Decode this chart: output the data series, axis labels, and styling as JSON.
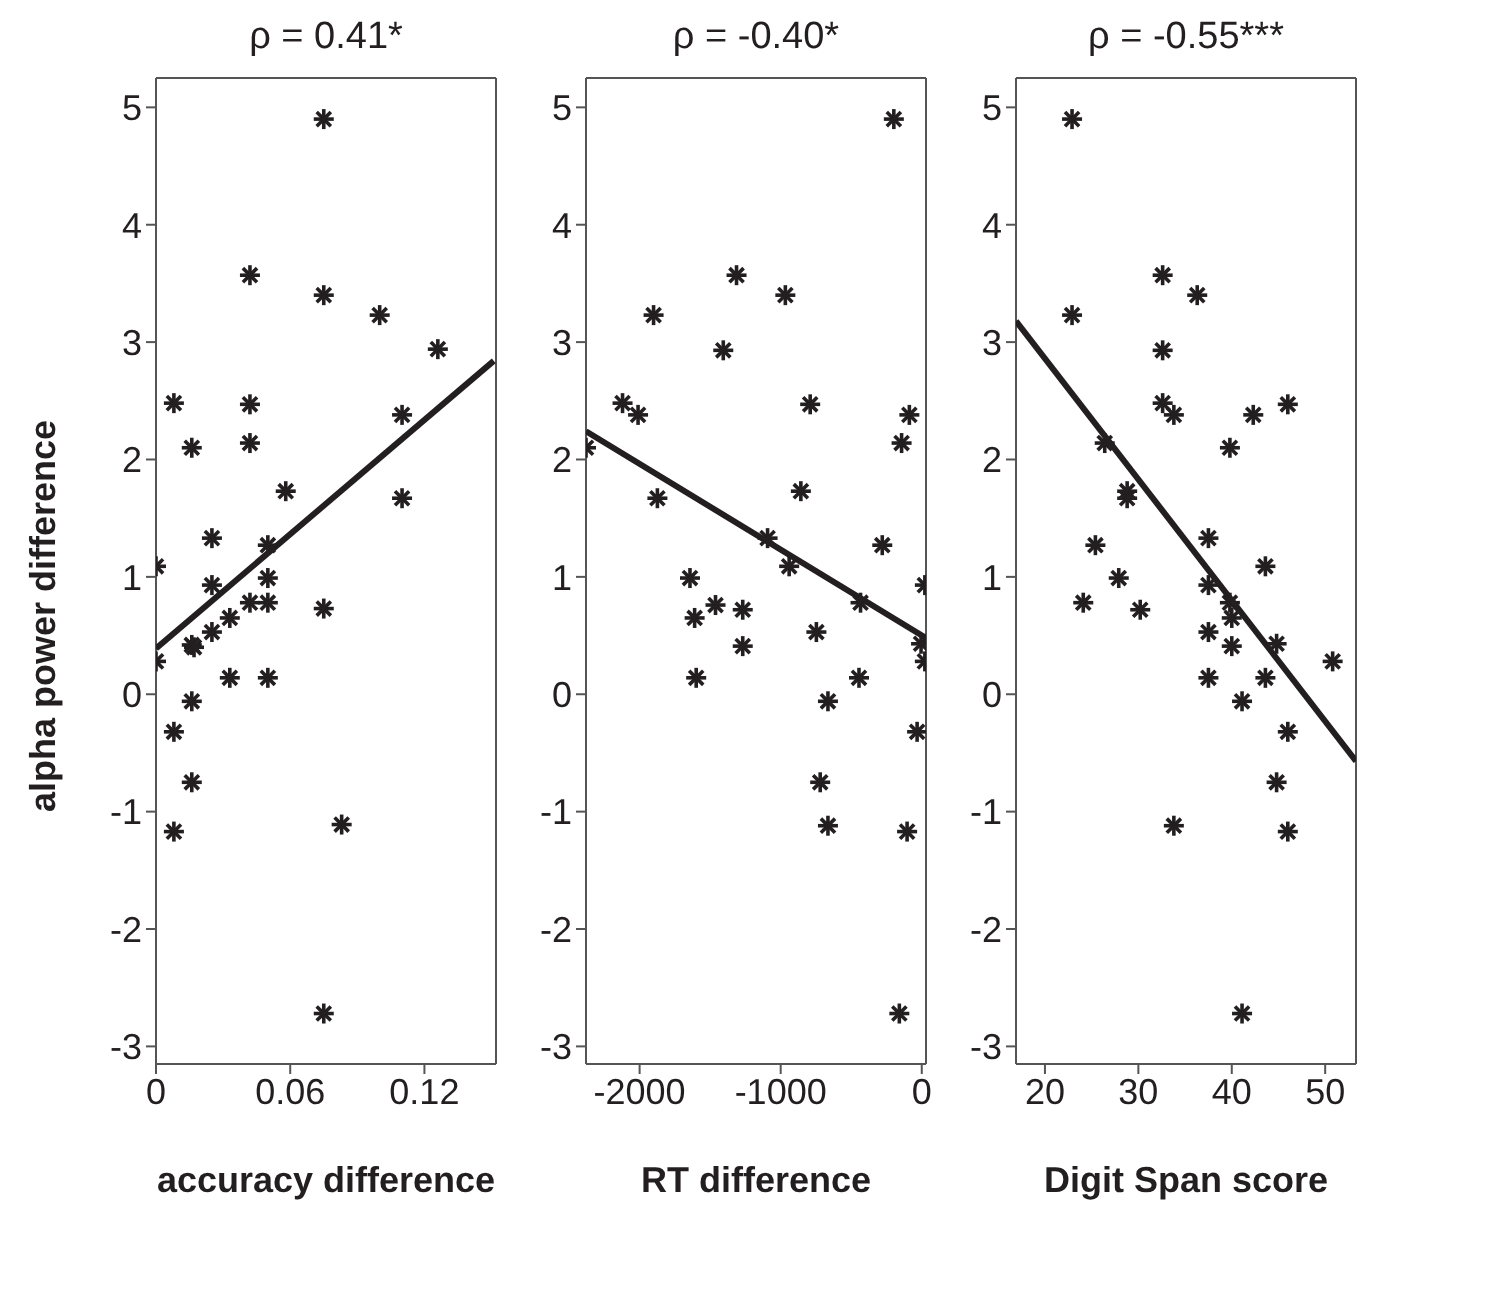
{
  "chart_data": [
    {
      "type": "scatter",
      "title": "ρ = 0.41*",
      "xlabel": "accuracy difference",
      "ylabel": "alpha power difference",
      "xlim": [
        0,
        0.152
      ],
      "xticks": [
        0,
        0.06,
        0.12
      ],
      "ylim": [
        -3.15,
        5.25
      ],
      "yticks": [
        -3,
        -2,
        -1,
        0,
        1,
        2,
        3,
        4,
        5
      ],
      "marker": "cross",
      "series": [
        {
          "color": "#231f20",
          "x": [
            0.075,
            0.042,
            0.075,
            0.1,
            0.126,
            0.008,
            0.042,
            0.11,
            0.016,
            0.042,
            0.058,
            0.11,
            0.025,
            0.0,
            0.05,
            0.025,
            0.05,
            0.042,
            0.05,
            0.075,
            0.033,
            0.025,
            0.016,
            0.017,
            0.0,
            0.033,
            0.05,
            0.016,
            0.008,
            0.016,
            0.008,
            0.083,
            0.075
          ],
          "values": [
            4.9,
            3.57,
            3.4,
            3.23,
            2.94,
            2.48,
            2.47,
            2.38,
            2.1,
            2.14,
            1.73,
            1.67,
            1.33,
            1.09,
            1.27,
            0.93,
            0.99,
            0.78,
            0.78,
            0.73,
            0.65,
            0.53,
            0.42,
            0.4,
            0.28,
            0.14,
            0.14,
            -0.06,
            -0.32,
            -0.75,
            -1.17,
            -1.11,
            -2.72
          ]
        },
        {
          "type": "line",
          "marker": "none",
          "color": "#231f20",
          "x": [
            0,
            0.151
          ],
          "values": [
            0.39,
            2.84
          ]
        }
      ]
    },
    {
      "type": "scatter",
      "title": "ρ = -0.40*",
      "xlabel": "RT difference",
      "xlim": [
        -2380,
        30
      ],
      "xticks": [
        -2000,
        -1000,
        0
      ],
      "ylim": [
        -3.15,
        5.25
      ],
      "yticks": [
        -3,
        -2,
        -1,
        0,
        1,
        2,
        3,
        4,
        5
      ],
      "marker": "cross",
      "series": [
        {
          "color": "#231f20",
          "x": [
            -198,
            -1313,
            -967,
            -1901,
            -1407,
            -2121,
            -2011,
            -791,
            -88,
            -2380,
            -143,
            -857,
            -1874,
            -1093,
            -940,
            -280,
            -1643,
            22,
            -1462,
            -1269,
            -434,
            -1610,
            -747,
            -1269,
            -5,
            22,
            -1599,
            -445,
            -665,
            -33,
            -720,
            -665,
            -104,
            -159
          ],
          "values": [
            4.9,
            3.57,
            3.4,
            3.23,
            2.93,
            2.48,
            2.38,
            2.47,
            2.38,
            2.1,
            2.14,
            1.73,
            1.67,
            1.33,
            1.09,
            1.27,
            0.99,
            0.93,
            0.76,
            0.72,
            0.78,
            0.65,
            0.53,
            0.41,
            0.43,
            0.28,
            0.14,
            0.14,
            -0.06,
            -0.32,
            -0.75,
            -1.12,
            -1.17,
            -2.72
          ]
        },
        {
          "type": "line",
          "marker": "none",
          "color": "#231f20",
          "x": [
            -2380,
            30
          ],
          "values": [
            2.24,
            0.48
          ]
        }
      ]
    },
    {
      "type": "scatter",
      "title": "ρ = -0.55***",
      "xlabel": "Digit Span score",
      "xlim": [
        16.9,
        53.3
      ],
      "xticks": [
        20,
        30,
        40,
        50
      ],
      "ylim": [
        -3.15,
        5.25
      ],
      "yticks": [
        -3,
        -2,
        -1,
        0,
        1,
        2,
        3,
        4,
        5
      ],
      "marker": "cross",
      "series": [
        {
          "color": "#231f20",
          "x": [
            22.9,
            22.9,
            32.6,
            36.3,
            32.6,
            32.6,
            33.8,
            42.3,
            46.0,
            26.4,
            39.8,
            28.8,
            28.8,
            37.5,
            25.4,
            43.6,
            27.9,
            37.5,
            24.1,
            39.8,
            30.2,
            40.0,
            37.5,
            40.0,
            44.8,
            50.8,
            37.5,
            43.6,
            41.1,
            46.0,
            44.8,
            33.8,
            46.0,
            41.1
          ],
          "values": [
            4.9,
            3.23,
            3.57,
            3.4,
            2.93,
            2.48,
            2.38,
            2.38,
            2.47,
            2.14,
            2.1,
            1.73,
            1.67,
            1.33,
            1.27,
            1.09,
            0.99,
            0.93,
            0.78,
            0.78,
            0.72,
            0.65,
            0.53,
            0.41,
            0.43,
            0.28,
            0.14,
            0.14,
            -0.06,
            -0.32,
            -0.75,
            -1.12,
            -1.17,
            -2.72
          ]
        },
        {
          "type": "line",
          "marker": "none",
          "color": "#231f20",
          "x": [
            16.9,
            53.3
          ],
          "values": [
            3.18,
            -0.57
          ]
        }
      ]
    }
  ]
}
